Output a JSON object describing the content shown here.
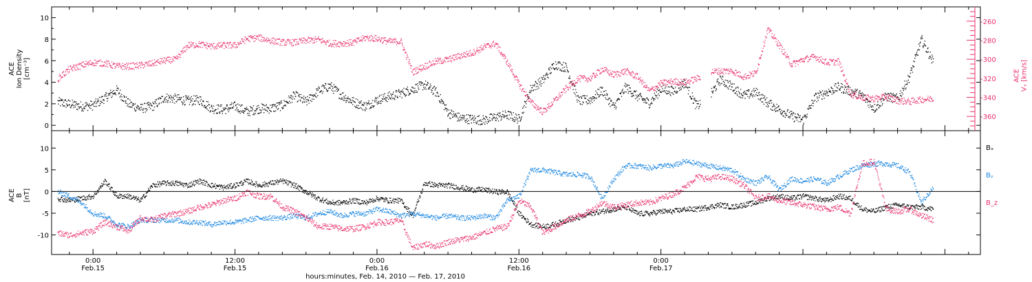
{
  "colors": {
    "black": "#000000",
    "pink": "#e8306a",
    "blue": "#1a86e0",
    "frame": "#000000"
  },
  "chart_data": [
    {
      "type": "scatter",
      "panel": "top",
      "ylabel_left_lines": [
        "ACE",
        "Ion Density",
        "[cm⁻³]"
      ],
      "ylabel_right_lines": [
        "ACE",
        "Vₓ [km/s]"
      ],
      "ylim_left": [
        -0.5,
        11
      ],
      "ylim_right": [
        -375,
        -245
      ],
      "yticks_left": [
        0,
        2,
        4,
        6,
        8,
        10
      ],
      "yticks_right": [
        -360,
        -340,
        -320,
        -300,
        -280,
        -260
      ],
      "series": [
        {
          "axis": "left",
          "color": "#000000",
          "x": [
            -3,
            -2,
            -1,
            0,
            1,
            2,
            3,
            4,
            5,
            6,
            7,
            8,
            9,
            10,
            11,
            12,
            13,
            14,
            15,
            16,
            17,
            18,
            19,
            20,
            21,
            22,
            23,
            24,
            25,
            26,
            27,
            28,
            29,
            30,
            31,
            32,
            33,
            34,
            35,
            36,
            37,
            38,
            39,
            40,
            41,
            42,
            43,
            44,
            45,
            46,
            47,
            48,
            49,
            50,
            51,
            52,
            53,
            54,
            55,
            56,
            57,
            58,
            59,
            60,
            61,
            62,
            63,
            64,
            65,
            66,
            67,
            68,
            69,
            70,
            71
          ],
          "values": [
            2.2,
            2.0,
            1.8,
            1.9,
            2.6,
            3.3,
            2.0,
            1.6,
            1.8,
            2.6,
            2.5,
            2.3,
            2.4,
            1.6,
            1.5,
            1.8,
            1.3,
            1.6,
            1.6,
            1.9,
            2.8,
            2.2,
            3.2,
            3.7,
            2.8,
            2.2,
            1.8,
            2.4,
            2.7,
            3.0,
            3.4,
            3.8,
            3.1,
            1.2,
            0.7,
            0.6,
            0.5,
            0.8,
            1.0,
            0.6,
            3.5,
            4.2,
            5.7,
            5.4,
            2.3,
            2.4,
            3.3,
            1.7,
            3.6,
            2.7,
            2.1,
            3.4,
            3.2,
            4.0,
            1.8,
            2.6,
            4.3,
            3.6,
            2.8,
            3.1,
            2.1,
            1.5,
            0.9,
            0.5,
            2.6,
            3.1,
            3.6,
            3.2,
            2.8,
            1.6,
            2.7,
            2.5,
            4.6,
            8.0,
            5.9
          ],
          "spread": 0.45,
          "gaps": [
            [
              51.3,
              52.2
            ]
          ]
        },
        {
          "axis": "right",
          "color": "#e8306a",
          "x": [
            -3,
            -2,
            -1,
            0,
            1,
            2,
            3,
            4,
            5,
            6,
            7,
            8,
            9,
            10,
            11,
            12,
            13,
            14,
            15,
            16,
            17,
            18,
            19,
            20,
            21,
            22,
            23,
            24,
            25,
            26,
            27,
            28,
            29,
            30,
            31,
            32,
            33,
            34,
            35,
            36,
            37,
            38,
            39,
            40,
            41,
            42,
            43,
            44,
            45,
            46,
            47,
            48,
            49,
            50,
            51,
            52,
            53,
            54,
            55,
            56,
            57,
            58,
            59,
            60,
            61,
            62,
            63,
            64,
            65,
            66,
            67,
            68,
            69,
            70,
            71
          ],
          "values": [
            -320,
            -310,
            -306,
            -303,
            -304,
            -307,
            -307,
            -306,
            -304,
            -301,
            -300,
            -285,
            -284,
            -286,
            -285,
            -285,
            -278,
            -277,
            -280,
            -282,
            -282,
            -280,
            -279,
            -283,
            -283,
            -282,
            -277,
            -278,
            -281,
            -281,
            -313,
            -307,
            -302,
            -300,
            -296,
            -293,
            -287,
            -283,
            -303,
            -326,
            -345,
            -355,
            -343,
            -330,
            -320,
            -320,
            -310,
            -316,
            -312,
            -318,
            -333,
            -325,
            -323,
            -324,
            -320,
            -313,
            -312,
            -312,
            -318,
            -314,
            -268,
            -285,
            -305,
            -300,
            -297,
            -303,
            -302,
            -336,
            -340,
            -341,
            -339,
            -343,
            -344,
            -342,
            -341
          ],
          "spread": 3.5,
          "gaps": [
            [
              51.3,
              52.2
            ]
          ]
        }
      ]
    },
    {
      "type": "scatter",
      "panel": "bottom",
      "ylabel_left_lines": [
        "ACE",
        "B",
        "[nT]"
      ],
      "ylim": [
        -14.5,
        14
      ],
      "yticks": [
        -10,
        -5,
        0,
        5,
        10
      ],
      "zero_line": true,
      "legend_labels": [
        "Bₓ",
        "Bᵧ",
        "B_z"
      ],
      "series": [
        {
          "name": "Bₓ",
          "color": "#000000",
          "x": [
            -3,
            -2,
            -1,
            0,
            1,
            2,
            3,
            4,
            5,
            6,
            7,
            8,
            9,
            10,
            11,
            12,
            13,
            14,
            15,
            16,
            17,
            18,
            19,
            20,
            21,
            22,
            23,
            24,
            25,
            26,
            27,
            28,
            29,
            30,
            31,
            32,
            33,
            34,
            35,
            36,
            37,
            38,
            39,
            40,
            41,
            42,
            43,
            44,
            45,
            46,
            47,
            48,
            49,
            50,
            51,
            52,
            53,
            54,
            55,
            56,
            57,
            58,
            59,
            60,
            61,
            62,
            63,
            64,
            65,
            66,
            67,
            68,
            69,
            70,
            71
          ],
          "values": [
            -1.5,
            -2.0,
            -1.5,
            -1.0,
            2.5,
            -1.0,
            -1.0,
            -2.0,
            1.5,
            2.0,
            2.0,
            1.5,
            2.5,
            1.5,
            1.0,
            1.5,
            2.5,
            1.5,
            2.0,
            2.5,
            1.5,
            0.0,
            -1.5,
            -2.5,
            -2.5,
            -2.0,
            -2.5,
            -1.5,
            -2.0,
            -2.0,
            -5.5,
            2.0,
            1.5,
            1.5,
            1.0,
            0.5,
            0.5,
            0.0,
            0.0,
            -5.0,
            -7.5,
            -8.0,
            -7.5,
            -6.5,
            -6.0,
            -5.0,
            -4.5,
            -4.0,
            -3.5,
            -5.0,
            -5.0,
            -4.5,
            -4.5,
            -4.0,
            -4.0,
            -3.5,
            -3.0,
            -3.5,
            -3.0,
            -2.5,
            -1.5,
            -1.0,
            -1.5,
            -1.0,
            -1.5,
            -2.0,
            -1.0,
            -1.5,
            -4.0,
            -4.5,
            -3.5,
            -3.0,
            -3.5,
            -3.5,
            -4.0
          ],
          "spread": 0.6
        },
        {
          "name": "Bᵧ",
          "color": "#1a86e0",
          "x": [
            -3,
            -2,
            -1,
            0,
            1,
            2,
            3,
            4,
            5,
            6,
            7,
            8,
            9,
            10,
            11,
            12,
            13,
            14,
            15,
            16,
            17,
            18,
            19,
            20,
            21,
            22,
            23,
            24,
            25,
            26,
            27,
            28,
            29,
            30,
            31,
            32,
            33,
            34,
            35,
            36,
            37,
            38,
            39,
            40,
            41,
            42,
            43,
            44,
            45,
            46,
            47,
            48,
            49,
            50,
            51,
            52,
            53,
            54,
            55,
            56,
            57,
            58,
            59,
            60,
            61,
            62,
            63,
            64,
            65,
            66,
            67,
            68,
            69,
            70,
            71
          ],
          "values": [
            0.0,
            -1.0,
            -2.5,
            -5.0,
            -5.5,
            -7.5,
            -8.0,
            -6.5,
            -6.5,
            -6.5,
            -6.5,
            -7.0,
            -7.0,
            -7.5,
            -7.0,
            -7.0,
            -6.5,
            -6.0,
            -6.0,
            -6.0,
            -5.5,
            -6.0,
            -5.0,
            -4.5,
            -5.5,
            -5.0,
            -5.0,
            -4.0,
            -4.5,
            -5.5,
            -5.0,
            -5.5,
            -6.0,
            -5.5,
            -6.0,
            -6.0,
            -5.5,
            -6.0,
            -2.0,
            -1.0,
            5.0,
            5.0,
            4.5,
            4.0,
            4.0,
            3.5,
            -1.5,
            3.0,
            6.0,
            6.0,
            5.5,
            6.0,
            6.0,
            7.0,
            6.5,
            6.0,
            5.5,
            5.0,
            3.0,
            2.0,
            3.5,
            0.5,
            3.0,
            2.5,
            3.0,
            2.0,
            3.5,
            5.0,
            6.0,
            6.5,
            6.5,
            6.0,
            4.5,
            -2.5,
            1.0
          ],
          "spread": 0.6
        },
        {
          "name": "B_z",
          "color": "#e8306a",
          "x": [
            -3,
            -2,
            -1,
            0,
            1,
            2,
            3,
            4,
            5,
            6,
            7,
            8,
            9,
            10,
            11,
            12,
            13,
            14,
            15,
            16,
            17,
            18,
            19,
            20,
            21,
            22,
            23,
            24,
            25,
            26,
            27,
            28,
            29,
            30,
            31,
            32,
            33,
            34,
            35,
            36,
            37,
            38,
            39,
            40,
            41,
            42,
            43,
            44,
            45,
            46,
            47,
            48,
            49,
            50,
            51,
            52,
            53,
            54,
            55,
            56,
            57,
            58,
            59,
            60,
            61,
            62,
            63,
            64,
            65,
            66,
            67,
            68,
            69,
            70,
            71
          ],
          "values": [
            -9.5,
            -10.0,
            -9.5,
            -9.0,
            -7.0,
            -8.0,
            -9.0,
            -6.0,
            -6.5,
            -5.5,
            -5.0,
            -4.5,
            -3.5,
            -3.0,
            -2.0,
            -1.5,
            0.0,
            -1.0,
            -1.0,
            -3.5,
            -4.5,
            -6.0,
            -8.0,
            -8.0,
            -8.5,
            -8.5,
            -8.0,
            -7.0,
            -7.0,
            -6.5,
            -13.0,
            -12.0,
            -12.5,
            -11.5,
            -11.0,
            -10.5,
            -9.5,
            -8.5,
            -8.0,
            -2.0,
            -3.5,
            -9.5,
            -8.0,
            -6.5,
            -5.5,
            -4.5,
            -2.5,
            -3.5,
            -3.0,
            -2.5,
            -2.5,
            -1.5,
            -0.5,
            1.0,
            3.5,
            3.0,
            3.5,
            3.0,
            1.5,
            -1.5,
            -1.0,
            -2.0,
            -2.5,
            -3.0,
            -3.5,
            -4.0,
            -3.5,
            -5.0,
            6.5,
            7.0,
            -4.0,
            -4.5,
            -4.0,
            -5.5,
            -6.5
          ],
          "spread": 0.7
        }
      ]
    }
  ],
  "x_axis": {
    "xlim": [
      -3.5,
      75
    ],
    "ticks": [
      {
        "hour": 0,
        "top": "0:00",
        "bottom": "Feb.15"
      },
      {
        "hour": 12,
        "top": "12:00",
        "bottom": "Feb.15"
      },
      {
        "hour": 24,
        "top": "0:00",
        "bottom": "Feb.16"
      },
      {
        "hour": 36,
        "top": "12:00",
        "bottom": "Feb.16"
      },
      {
        "hour": 48,
        "top": "0:00",
        "bottom": "Feb.17"
      }
    ],
    "minor_step_hours": 2,
    "title": "hours:minutes, Feb. 14, 2010 — Feb. 17, 2010"
  }
}
